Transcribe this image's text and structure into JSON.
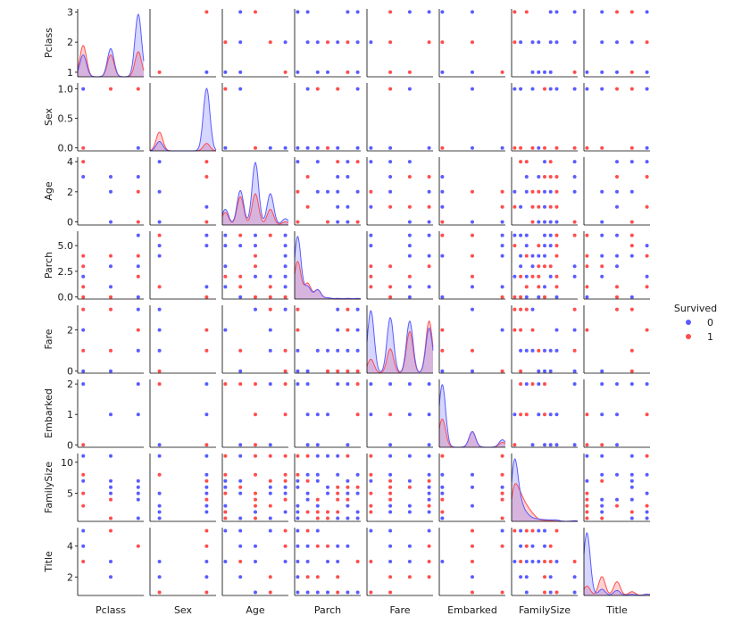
{
  "colors": {
    "class_0": "#5a5cff",
    "class_1": "#ff4d4d",
    "axis": "#000000"
  },
  "legend": {
    "title": "Survived",
    "labels": [
      "0",
      "1"
    ],
    "placement": "right"
  },
  "chart_data": {
    "type": "scatter",
    "subtype": "pairplot",
    "hue": "Survived",
    "variables": [
      "Pclass",
      "Sex",
      "Age",
      "Parch",
      "Fare",
      "Embarked",
      "FamilySize",
      "Title"
    ],
    "x_range": {
      "Pclass": [
        0.8,
        3.2
      ],
      "Sex": [
        -0.2,
        1.2
      ],
      "Age": [
        -0.2,
        4.2
      ],
      "Parch": [
        -0.3,
        6.3
      ],
      "Fare": [
        -0.2,
        3.2
      ],
      "Embarked": [
        -0.1,
        2.1
      ],
      "FamilySize": [
        0.5,
        11.5
      ],
      "Title": [
        0.8,
        5.2
      ]
    },
    "y_range": {
      "Pclass": [
        0.85,
        3.1
      ],
      "Sex": [
        -0.05,
        1.1
      ],
      "Age": [
        -0.2,
        4.3
      ],
      "Parch": [
        -0.2,
        6.4
      ],
      "Fare": [
        -0.1,
        3.2
      ],
      "Embarked": [
        -0.08,
        2.15
      ],
      "FamilySize": [
        0.5,
        11.4
      ],
      "Title": [
        0.8,
        5.2
      ]
    },
    "y_ticks": {
      "Pclass": [
        "1",
        "2",
        "3"
      ],
      "Sex": [
        "0.0",
        "0.5",
        "1.0"
      ],
      "Age": [
        "0",
        "2",
        "4"
      ],
      "Parch": [
        "0.0",
        "2.5",
        "5.0"
      ],
      "Fare": [
        "0",
        "2"
      ],
      "Embarked": [
        "0",
        "1",
        "2"
      ],
      "FamilySize": [
        "5",
        "10"
      ],
      "Title": [
        "2",
        "4"
      ]
    },
    "values": {
      "Pclass": [
        1,
        2,
        3
      ],
      "Sex": [
        0,
        1
      ],
      "Age": [
        0,
        1,
        2,
        3,
        4
      ],
      "Parch": [
        0,
        1,
        2,
        3,
        4,
        5,
        6
      ],
      "Fare": [
        0,
        1,
        2,
        3
      ],
      "Embarked": [
        0,
        1,
        2
      ],
      "FamilySize": [
        1,
        2,
        3,
        4,
        5,
        6,
        7,
        8,
        11
      ],
      "Title": [
        1,
        2,
        3,
        4,
        5
      ]
    },
    "diagonal": "kde"
  }
}
